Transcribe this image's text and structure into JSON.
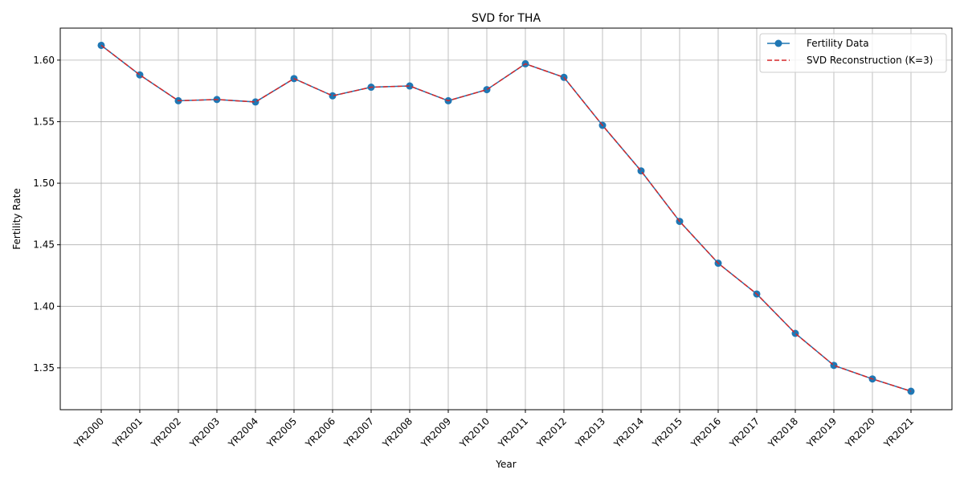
{
  "chart_data": {
    "type": "line",
    "title": "SVD for THA",
    "xlabel": "Year",
    "ylabel": "Fertility Rate",
    "categories": [
      "YR2000",
      "YR2001",
      "YR2002",
      "YR2003",
      "YR2004",
      "YR2005",
      "YR2006",
      "YR2007",
      "YR2008",
      "YR2009",
      "YR2010",
      "YR2011",
      "YR2012",
      "YR2013",
      "YR2014",
      "YR2015",
      "YR2016",
      "YR2017",
      "YR2018",
      "YR2019",
      "YR2020",
      "YR2021"
    ],
    "ylim": [
      1.316,
      1.626
    ],
    "yticks": [
      1.35,
      1.4,
      1.45,
      1.5,
      1.55,
      1.6
    ],
    "ytick_labels": [
      "1.35",
      "1.40",
      "1.45",
      "1.50",
      "1.55",
      "1.60"
    ],
    "grid": true,
    "legend_position": "top-right",
    "series": [
      {
        "name": "Fertility Data",
        "style": "solid-with-markers",
        "color": "#1f77b4",
        "values": [
          1.612,
          1.588,
          1.567,
          1.568,
          1.566,
          1.585,
          1.571,
          1.578,
          1.579,
          1.567,
          1.576,
          1.597,
          1.586,
          1.547,
          1.51,
          1.469,
          1.435,
          1.41,
          1.378,
          1.352,
          1.341,
          1.331
        ]
      },
      {
        "name": "SVD Reconstruction (K=3)",
        "style": "dashed",
        "color": "#d62728",
        "values": [
          1.612,
          1.588,
          1.567,
          1.568,
          1.566,
          1.585,
          1.571,
          1.578,
          1.579,
          1.567,
          1.576,
          1.597,
          1.586,
          1.547,
          1.51,
          1.469,
          1.435,
          1.41,
          1.378,
          1.352,
          1.341,
          1.331
        ]
      }
    ]
  }
}
